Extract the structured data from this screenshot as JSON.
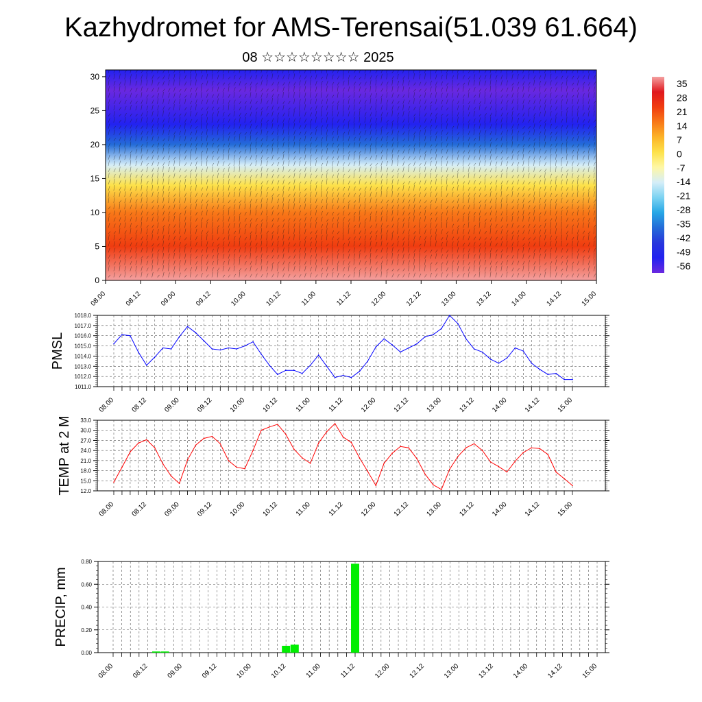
{
  "title": "Kazhydromet for AMS-Terensai(51.039 61.664)",
  "subtitle": "08 ☆☆☆☆☆☆☆☆ 2025",
  "colorbar": {
    "labels": [
      "35",
      "28",
      "21",
      "14",
      "7",
      "0",
      "-7",
      "-14",
      "-21",
      "-28",
      "-35",
      "-42",
      "-49",
      "-56"
    ],
    "colors": [
      "#f4a0a0",
      "#e0181e",
      "#f03c10",
      "#f87818",
      "#fcb428",
      "#fde24a",
      "#fef7a6",
      "#d6eef8",
      "#7dd3f2",
      "#27a7e6",
      "#246cd8",
      "#2838dc",
      "#2222f0",
      "#6a28e0"
    ]
  },
  "chart_data": [
    {
      "type": "heatmap",
      "name": "vertical temperature and wind cross-section",
      "x_tick_labels": [
        "08.00",
        "08.12",
        "09.00",
        "09.12",
        "10.00",
        "10.12",
        "11.00",
        "11.12",
        "12.00",
        "12.12",
        "13.00",
        "13.12",
        "14.00",
        "14.12",
        "15.00"
      ],
      "y_tick_labels": [
        "0",
        "5",
        "10",
        "15",
        "20",
        "25",
        "30"
      ],
      "ylim": [
        0,
        31
      ],
      "levels": [
        0,
        5,
        10,
        14,
        17,
        20,
        23,
        28,
        31
      ],
      "level_temps": [
        32,
        22,
        12,
        0,
        -12,
        -35,
        -52,
        -58,
        -52
      ],
      "color_scale": [
        -56,
        35
      ]
    },
    {
      "type": "line",
      "ylabel": "PMSL",
      "ylim": [
        1011.0,
        1018.0
      ],
      "y_tick_labels": [
        "1011.0",
        "1012.0",
        "1013.0",
        "1014.0",
        "1015.0",
        "1016.0",
        "1017.0",
        "1018.0"
      ],
      "x_tick_labels": [
        "08.00",
        "08.12",
        "09.00",
        "09.12",
        "10.00",
        "10.12",
        "11.00",
        "11.12",
        "12.00",
        "12.12",
        "13.00",
        "13.12",
        "14.00",
        "14.12",
        "15.00"
      ],
      "x_step_hours": 3,
      "color": "#0000ff",
      "values": [
        1015.2,
        1016.1,
        1016.0,
        1014.4,
        1013.1,
        1013.9,
        1014.8,
        1014.7,
        1015.9,
        1016.9,
        1016.3,
        1015.5,
        1014.7,
        1014.6,
        1014.8,
        1014.7,
        1015.0,
        1015.4,
        1014.2,
        1013.1,
        1012.2,
        1012.6,
        1012.6,
        1012.3,
        1013.1,
        1014.1,
        1013.0,
        1011.9,
        1012.1,
        1011.9,
        1012.5,
        1013.5,
        1014.9,
        1015.7,
        1015.1,
        1014.4,
        1014.8,
        1015.2,
        1015.9,
        1016.1,
        1016.7,
        1018.0,
        1017.2,
        1015.7,
        1014.7,
        1014.4,
        1013.7,
        1013.3,
        1013.8,
        1014.8,
        1014.5,
        1013.3,
        1012.7,
        1012.2,
        1012.3,
        1011.7,
        1011.7
      ]
    },
    {
      "type": "line",
      "ylabel": "TEMP at 2 M",
      "ylim": [
        12.0,
        33.0
      ],
      "y_tick_labels": [
        "12.0",
        "15.0",
        "18.0",
        "21.0",
        "24.0",
        "27.0",
        "30.0",
        "33.0"
      ],
      "x_tick_labels": [
        "08.00",
        "08.12",
        "09.00",
        "09.12",
        "10.00",
        "10.12",
        "11.00",
        "11.12",
        "12.00",
        "12.12",
        "13.00",
        "13.12",
        "14.00",
        "14.12",
        "15.00"
      ],
      "x_step_hours": 3,
      "color": "#ff0000",
      "values": [
        14.6,
        19.0,
        23.6,
        26.2,
        27.2,
        24.8,
        20.0,
        16.4,
        14.2,
        21.2,
        25.6,
        27.6,
        28.2,
        26.0,
        21.0,
        19.0,
        18.6,
        24.0,
        30.0,
        31.0,
        31.8,
        28.8,
        24.4,
        21.8,
        20.2,
        26.2,
        29.6,
        32.0,
        28.0,
        26.4,
        21.8,
        17.8,
        13.6,
        20.2,
        23.2,
        25.2,
        24.8,
        21.6,
        17.0,
        13.8,
        12.4,
        18.4,
        22.2,
        24.8,
        26.0,
        24.0,
        20.6,
        19.2,
        17.6,
        20.8,
        23.4,
        24.8,
        24.6,
        22.8,
        17.6,
        15.6,
        13.6
      ]
    },
    {
      "type": "bar",
      "ylabel": "PRECIP, mm",
      "ylim": [
        0.0,
        0.8
      ],
      "y_tick_labels": [
        "0.00",
        "0.20",
        "0.40",
        "0.60",
        "0.80"
      ],
      "x_tick_labels": [
        "08.00",
        "08.12",
        "09.00",
        "09.12",
        "10.00",
        "10.12",
        "11.00",
        "11.12",
        "12.00",
        "12.12",
        "13.00",
        "13.12",
        "14.00",
        "14.12",
        "15.00"
      ],
      "color": "#00ee00",
      "bars": [
        {
          "hour": 15,
          "value": 0.01
        },
        {
          "hour": 18,
          "value": 0.01
        },
        {
          "hour": 60,
          "value": 0.06
        },
        {
          "hour": 63,
          "value": 0.07
        },
        {
          "hour": 84,
          "value": 0.78
        }
      ]
    }
  ]
}
